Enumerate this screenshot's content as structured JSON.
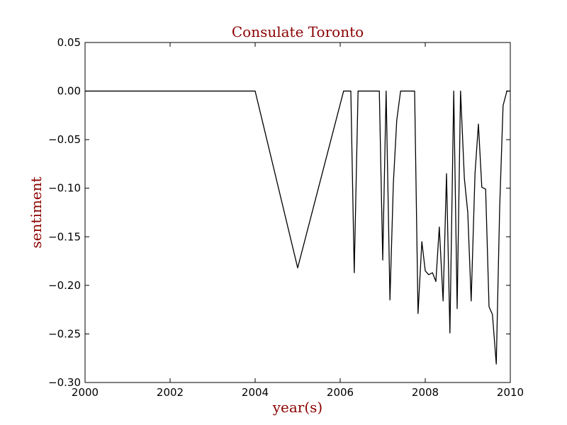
{
  "chart_data": {
    "type": "line",
    "title": "Consulate Toronto",
    "xlabel": "year(s)",
    "ylabel": "sentiment",
    "xlim": [
      2000,
      2010
    ],
    "ylim": [
      -0.3,
      0.05
    ],
    "xticks": [
      "2000",
      "2002",
      "2004",
      "2006",
      "2008",
      "2010"
    ],
    "yticks": [
      "0.05",
      "0.00",
      "−0.05",
      "−0.10",
      "−0.15",
      "−0.20",
      "−0.25",
      "−0.30"
    ],
    "grid": false,
    "series": [
      {
        "color": "#000000",
        "x": [
          2000.0,
          2004.0,
          2005.0,
          2006.08,
          2006.25,
          2006.33,
          2006.42,
          2006.92,
          2007.0,
          2007.08,
          2007.17,
          2007.25,
          2007.33,
          2007.42,
          2007.75,
          2007.83,
          2007.92,
          2008.0,
          2008.08,
          2008.17,
          2008.25,
          2008.33,
          2008.42,
          2008.5,
          2008.58,
          2008.67,
          2008.75,
          2008.83,
          2008.92,
          2009.0,
          2009.08,
          2009.17,
          2009.25,
          2009.33,
          2009.42,
          2009.5,
          2009.58,
          2009.67,
          2009.75,
          2009.83,
          2009.92,
          2010.0
        ],
        "y": [
          0.0,
          0.0,
          -0.182,
          0.0,
          0.0,
          -0.187,
          0.0,
          0.0,
          -0.174,
          0.0,
          -0.215,
          -0.095,
          -0.03,
          0.0,
          0.0,
          -0.229,
          -0.155,
          -0.185,
          -0.189,
          -0.187,
          -0.196,
          -0.14,
          -0.216,
          -0.085,
          -0.249,
          0.0,
          -0.224,
          0.0,
          -0.09,
          -0.125,
          -0.216,
          -0.085,
          -0.034,
          -0.099,
          -0.101,
          -0.222,
          -0.23,
          -0.281,
          -0.12,
          -0.015,
          0.0,
          0.0
        ]
      }
    ]
  },
  "colors": {
    "title": "#8b0000",
    "axis_labels": "#8b0000",
    "line": "#000000",
    "axes": "#000000",
    "background": "#ffffff"
  }
}
